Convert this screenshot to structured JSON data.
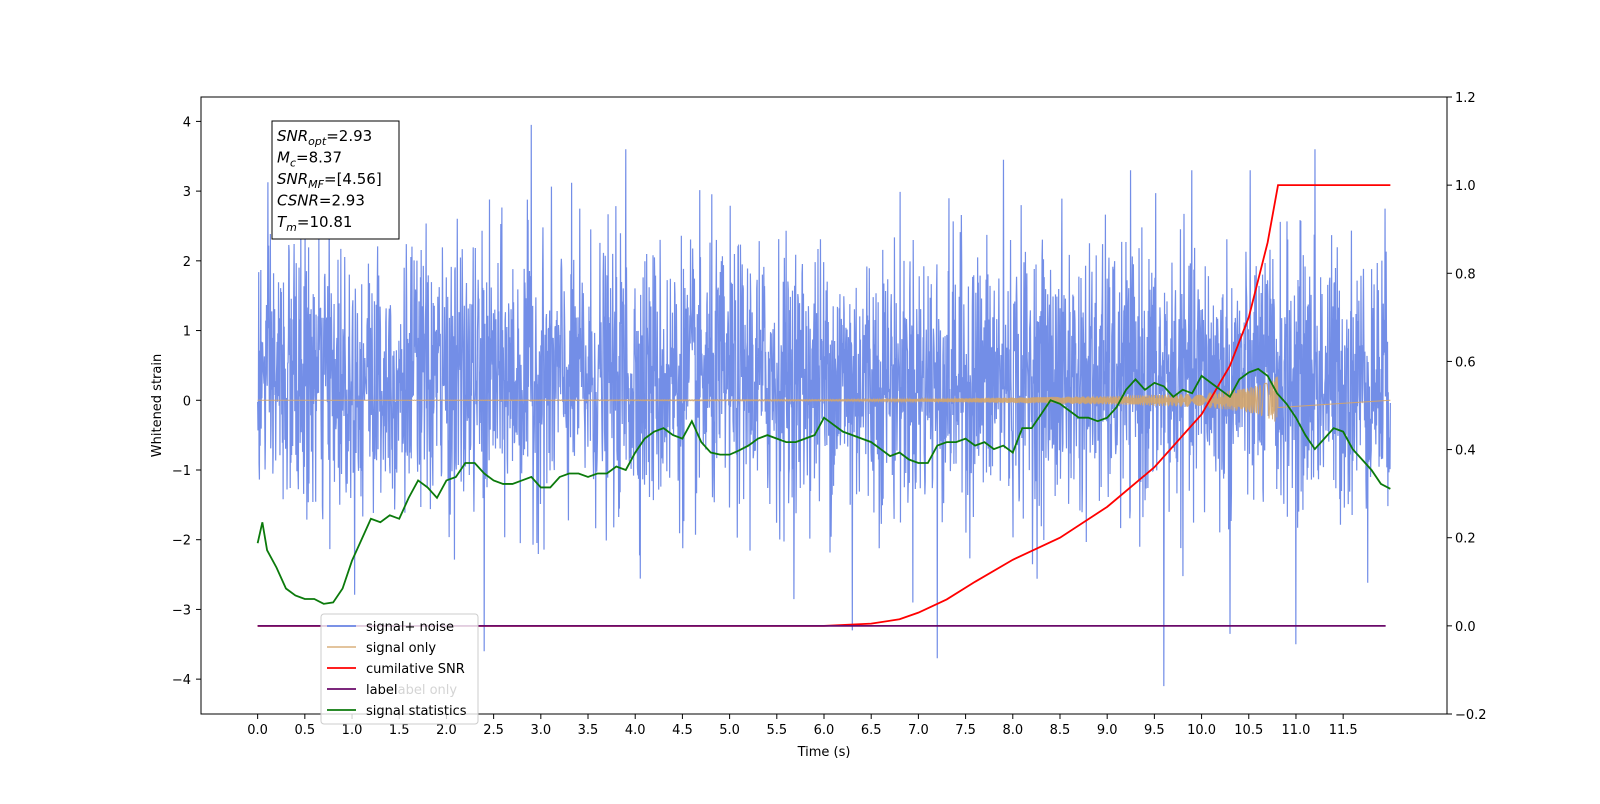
{
  "chart_data": {
    "type": "line",
    "title": "",
    "xlabel": "Time (s)",
    "ylabel": "Whitened strain",
    "y2label": "",
    "xlim": [
      -0.6,
      12.6
    ],
    "ylim": [
      -4.5,
      4.35
    ],
    "y2lim": [
      -0.2,
      1.2
    ],
    "x_ticks": [
      0.0,
      0.5,
      1.0,
      1.5,
      2.0,
      2.5,
      3.0,
      3.5,
      4.0,
      4.5,
      5.0,
      5.5,
      6.0,
      6.5,
      7.0,
      7.5,
      8.0,
      8.5,
      9.0,
      9.5,
      10.0,
      10.5,
      11.0,
      11.5
    ],
    "x_tick_labels": [
      "0.0",
      "0.5",
      "1.0",
      "1.5",
      "2.0",
      "2.5",
      "3.0",
      "3.5",
      "4.0",
      "4.5",
      "5.0",
      "5.5",
      "6.0",
      "6.5",
      "7.0",
      "7.5",
      "8.0",
      "8.5",
      "9.0",
      "9.5",
      "10.0",
      "10.5",
      "11.0",
      "11.5"
    ],
    "y_ticks": [
      4,
      3,
      2,
      1,
      0,
      -1,
      -2,
      -3,
      -4
    ],
    "y_tick_labels": [
      "4",
      "3",
      "2",
      "1",
      "0",
      "−1",
      "−2",
      "−3",
      "−4"
    ],
    "y2_ticks": [
      1.2,
      1.0,
      0.8,
      0.6,
      0.4,
      0.2,
      0.0,
      -0.2
    ],
    "y2_tick_labels": [
      "1.2",
      "1.0",
      "0.8",
      "0.6",
      "0.4",
      "0.2",
      "0.0",
      "−0.2"
    ],
    "grid": false,
    "legend_position": "bottom-left",
    "series": [
      {
        "name": "signal+ noise",
        "axis": "left",
        "color": "#6b88e6",
        "kind": "noise-band",
        "x_range": [
          0,
          12
        ],
        "typical_range": [
          -1.6,
          2.2
        ],
        "peaks": [
          [
            2.9,
            3.95
          ],
          [
            3.9,
            3.6
          ],
          [
            7.9,
            3.45
          ],
          [
            11.2,
            3.6
          ],
          [
            9.6,
            -4.1
          ],
          [
            7.2,
            -3.7
          ],
          [
            11.0,
            -3.5
          ],
          [
            2.4,
            -3.6
          ],
          [
            6.3,
            -3.3
          ],
          [
            10.3,
            -3.35
          ]
        ]
      },
      {
        "name": "signal only",
        "axis": "left",
        "color": "#d4a56a",
        "kind": "chirp",
        "x_range": [
          0,
          10.81
        ],
        "envelope": [
          [
            0,
            0.0
          ],
          [
            6.0,
            0.01
          ],
          [
            7.0,
            0.02
          ],
          [
            8.0,
            0.04
          ],
          [
            9.0,
            0.06
          ],
          [
            9.5,
            0.08
          ],
          [
            10.0,
            0.1
          ],
          [
            10.3,
            0.14
          ],
          [
            10.5,
            0.18
          ],
          [
            10.7,
            0.25
          ],
          [
            10.81,
            0.35
          ]
        ]
      },
      {
        "name": "cumilative SNR",
        "axis": "right",
        "color": "#ff0000",
        "points": [
          [
            0,
            0.0
          ],
          [
            6.0,
            0.0
          ],
          [
            6.5,
            0.005
          ],
          [
            6.8,
            0.015
          ],
          [
            7.0,
            0.03
          ],
          [
            7.3,
            0.06
          ],
          [
            7.6,
            0.1
          ],
          [
            8.0,
            0.15
          ],
          [
            8.5,
            0.2
          ],
          [
            9.0,
            0.27
          ],
          [
            9.5,
            0.36
          ],
          [
            10.0,
            0.48
          ],
          [
            10.3,
            0.59
          ],
          [
            10.5,
            0.7
          ],
          [
            10.7,
            0.87
          ],
          [
            10.81,
            1.0
          ],
          [
            12.0,
            1.0
          ]
        ]
      },
      {
        "name": "label",
        "axis": "right",
        "color": "#6a0a6a",
        "points": [
          [
            0,
            0.0
          ],
          [
            11.95,
            0.0
          ]
        ]
      },
      {
        "name": "signal statistics",
        "axis": "left",
        "color": "#0b7a0b",
        "points": [
          [
            0.0,
            -2.05
          ],
          [
            0.05,
            -1.75
          ],
          [
            0.1,
            -2.15
          ],
          [
            0.2,
            -2.4
          ],
          [
            0.3,
            -2.7
          ],
          [
            0.4,
            -2.8
          ],
          [
            0.5,
            -2.85
          ],
          [
            0.6,
            -2.85
          ],
          [
            0.7,
            -2.92
          ],
          [
            0.8,
            -2.9
          ],
          [
            0.9,
            -2.7
          ],
          [
            1.0,
            -2.3
          ],
          [
            1.1,
            -2.0
          ],
          [
            1.2,
            -1.7
          ],
          [
            1.3,
            -1.75
          ],
          [
            1.4,
            -1.65
          ],
          [
            1.5,
            -1.7
          ],
          [
            1.6,
            -1.4
          ],
          [
            1.7,
            -1.15
          ],
          [
            1.8,
            -1.25
          ],
          [
            1.9,
            -1.4
          ],
          [
            2.0,
            -1.15
          ],
          [
            2.1,
            -1.1
          ],
          [
            2.2,
            -0.9
          ],
          [
            2.3,
            -0.9
          ],
          [
            2.4,
            -1.05
          ],
          [
            2.5,
            -1.15
          ],
          [
            2.6,
            -1.2
          ],
          [
            2.7,
            -1.2
          ],
          [
            2.8,
            -1.15
          ],
          [
            2.9,
            -1.1
          ],
          [
            3.0,
            -1.25
          ],
          [
            3.1,
            -1.25
          ],
          [
            3.2,
            -1.1
          ],
          [
            3.3,
            -1.05
          ],
          [
            3.4,
            -1.05
          ],
          [
            3.5,
            -1.1
          ],
          [
            3.6,
            -1.05
          ],
          [
            3.7,
            -1.05
          ],
          [
            3.8,
            -0.95
          ],
          [
            3.9,
            -1.0
          ],
          [
            4.0,
            -0.75
          ],
          [
            4.1,
            -0.55
          ],
          [
            4.2,
            -0.45
          ],
          [
            4.3,
            -0.4
          ],
          [
            4.4,
            -0.5
          ],
          [
            4.5,
            -0.55
          ],
          [
            4.6,
            -0.3
          ],
          [
            4.7,
            -0.6
          ],
          [
            4.8,
            -0.75
          ],
          [
            4.9,
            -0.78
          ],
          [
            5.0,
            -0.78
          ],
          [
            5.1,
            -0.72
          ],
          [
            5.2,
            -0.65
          ],
          [
            5.3,
            -0.55
          ],
          [
            5.4,
            -0.5
          ],
          [
            5.5,
            -0.55
          ],
          [
            5.6,
            -0.6
          ],
          [
            5.7,
            -0.6
          ],
          [
            5.8,
            -0.55
          ],
          [
            5.9,
            -0.5
          ],
          [
            6.0,
            -0.25
          ],
          [
            6.1,
            -0.35
          ],
          [
            6.2,
            -0.45
          ],
          [
            6.3,
            -0.5
          ],
          [
            6.4,
            -0.55
          ],
          [
            6.5,
            -0.6
          ],
          [
            6.6,
            -0.7
          ],
          [
            6.7,
            -0.8
          ],
          [
            6.8,
            -0.75
          ],
          [
            6.9,
            -0.85
          ],
          [
            7.0,
            -0.9
          ],
          [
            7.1,
            -0.9
          ],
          [
            7.2,
            -0.65
          ],
          [
            7.3,
            -0.6
          ],
          [
            7.4,
            -0.6
          ],
          [
            7.5,
            -0.55
          ],
          [
            7.6,
            -0.65
          ],
          [
            7.7,
            -0.6
          ],
          [
            7.8,
            -0.7
          ],
          [
            7.9,
            -0.65
          ],
          [
            8.0,
            -0.75
          ],
          [
            8.1,
            -0.4
          ],
          [
            8.2,
            -0.4
          ],
          [
            8.3,
            -0.2
          ],
          [
            8.4,
            0.0
          ],
          [
            8.5,
            -0.05
          ],
          [
            8.6,
            -0.15
          ],
          [
            8.7,
            -0.25
          ],
          [
            8.8,
            -0.25
          ],
          [
            8.9,
            -0.3
          ],
          [
            9.0,
            -0.25
          ],
          [
            9.1,
            -0.1
          ],
          [
            9.2,
            0.15
          ],
          [
            9.3,
            0.3
          ],
          [
            9.4,
            0.15
          ],
          [
            9.5,
            0.25
          ],
          [
            9.6,
            0.2
          ],
          [
            9.7,
            0.05
          ],
          [
            9.8,
            0.15
          ],
          [
            9.9,
            0.1
          ],
          [
            10.0,
            0.35
          ],
          [
            10.1,
            0.25
          ],
          [
            10.2,
            0.15
          ],
          [
            10.3,
            0.05
          ],
          [
            10.4,
            0.3
          ],
          [
            10.5,
            0.4
          ],
          [
            10.6,
            0.45
          ],
          [
            10.7,
            0.35
          ],
          [
            10.8,
            0.1
          ],
          [
            10.9,
            -0.05
          ],
          [
            11.0,
            -0.25
          ],
          [
            11.1,
            -0.5
          ],
          [
            11.2,
            -0.7
          ],
          [
            11.3,
            -0.55
          ],
          [
            11.4,
            -0.4
          ],
          [
            11.5,
            -0.45
          ],
          [
            11.6,
            -0.7
          ],
          [
            11.7,
            -0.85
          ],
          [
            11.8,
            -1.0
          ],
          [
            11.9,
            -1.2
          ],
          [
            12.0,
            -1.27
          ]
        ]
      }
    ],
    "legend_overlay_fragments": [
      "label only"
    ]
  },
  "stats_box": {
    "lines": [
      {
        "main": "SNR",
        "sub": "opt",
        "value": "=2.93"
      },
      {
        "main": "M",
        "sub": "c",
        "value": "=8.37"
      },
      {
        "main": "SNR",
        "sub": "MF",
        "value": "=[4.56]"
      },
      {
        "main": "CSNR",
        "sub": "",
        "value": "=2.93"
      },
      {
        "main": "T",
        "sub": "m",
        "value": "=10.81"
      }
    ]
  }
}
